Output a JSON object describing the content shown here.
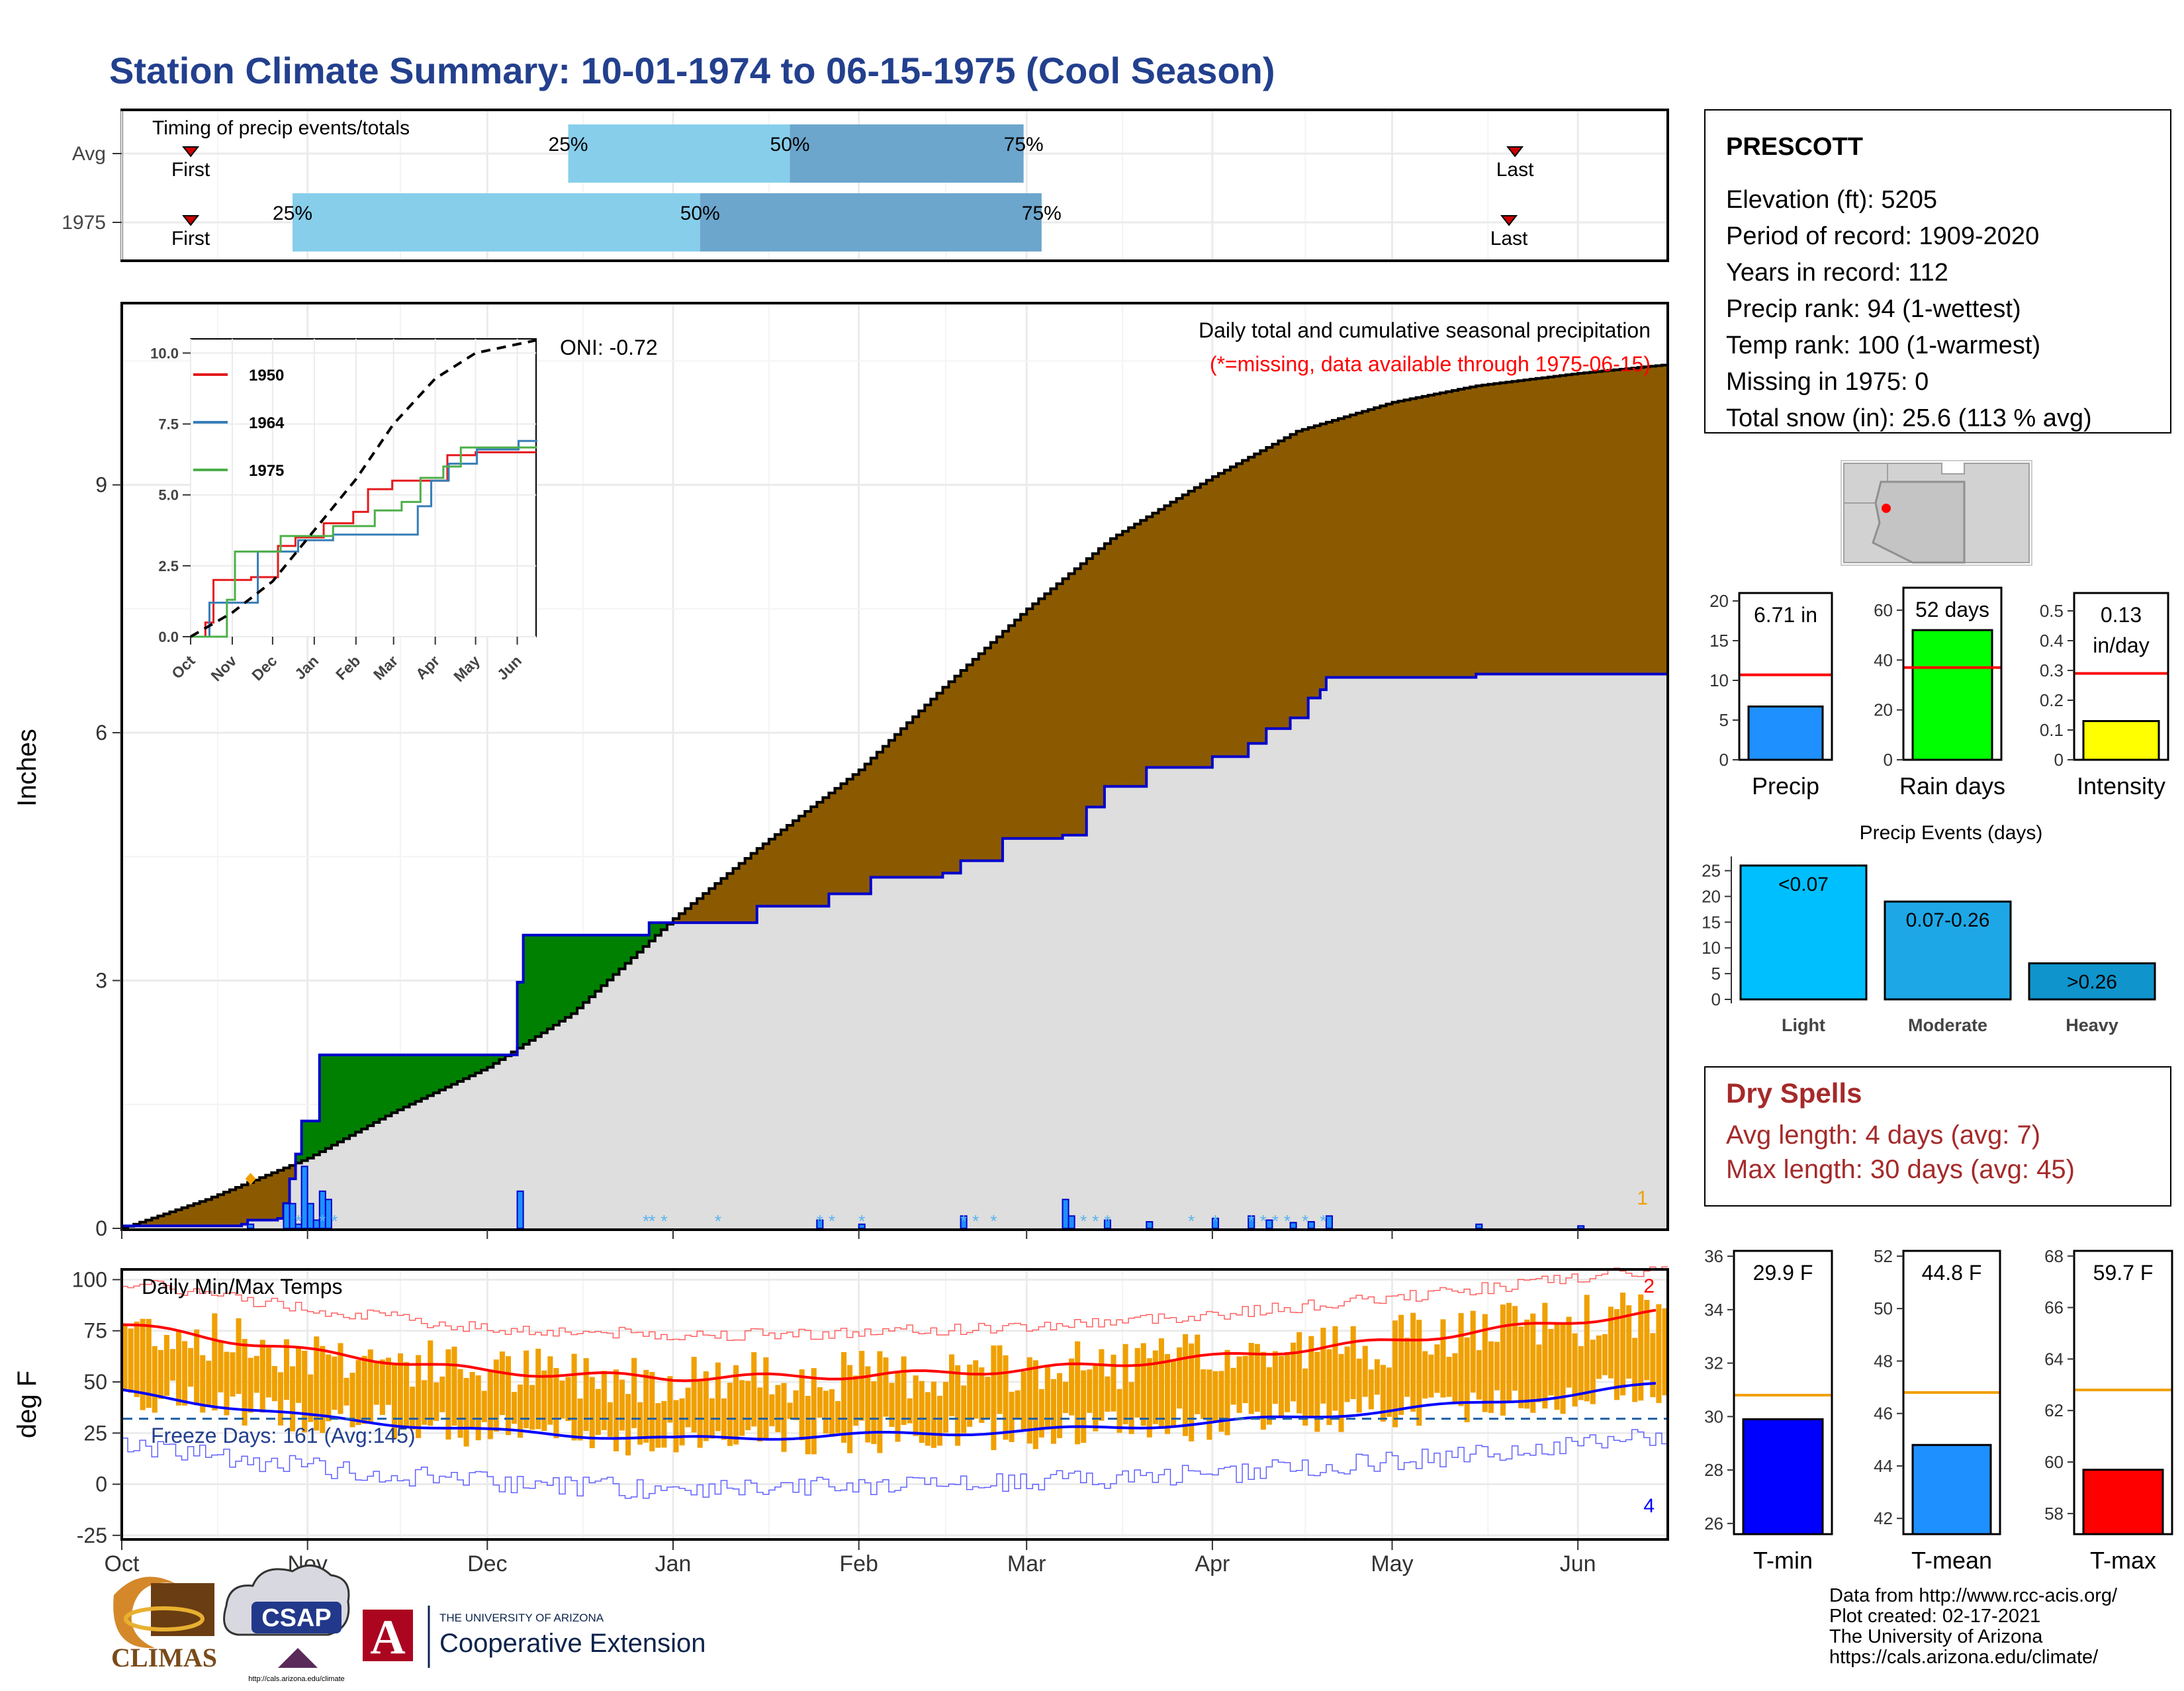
{
  "page": {
    "title": "Station Climate Summary: 10-01-1974 to 06-15-1975 (Cool Season)",
    "credits": [
      "Data from http://www.rcc-acis.org/",
      "Plot created: 02-17-2021",
      "The University of Arizona",
      "https://cals.arizona.edu/climate/"
    ]
  },
  "colors": {
    "title": "#23408e",
    "brown": "#8b5a00",
    "green": "#008000",
    "gray_fill": "#dedede",
    "blue_line": "#0000cc",
    "orange": "#f0a000",
    "precip_bar": "#1e90ff",
    "rain_bar": "#00ff00",
    "intensity_bar": "#ffff00",
    "light_blue": "#87ceeb",
    "mid_blue": "#6ca6cd",
    "dry_red": "#a52a2a",
    "tmin": "#0000ff",
    "tmean": "#1e90ff",
    "tmax": "#ff0000"
  },
  "station": {
    "name": "PRESCOTT",
    "lines": [
      "Elevation (ft): 5205",
      "Period of record: 1909-2020",
      "Years in record: 112",
      "Precip rank: 94 (1-wettest)",
      "Temp rank: 100 (1-warmest)",
      "Missing in 1975: 0",
      "Total snow (in): 25.6 (113 % avg)"
    ]
  },
  "logos": {
    "climas": "CLIMAS",
    "csap": "CSAP",
    "csap_url": "http://cals.arizona.edu/climate",
    "ua_top": "THE UNIVERSITY OF ARIZONA",
    "ua_main": "Cooperative Extension",
    "ua_letter": "A"
  },
  "chart_data": [
    {
      "type": "bar",
      "id": "timing",
      "title": "Timing of precip events/totals",
      "categories": [
        "Avg",
        "1975"
      ],
      "x_axis": "date, 1974-10-01 to 1975-06-15",
      "rows": [
        {
          "label": "Avg",
          "first": "1974-10-12",
          "p25": "1974-12-14",
          "p50": "1975-01-20",
          "p75": "1975-02-28",
          "last": "1975-05-21"
        },
        {
          "label": "1975",
          "first": "1974-10-12",
          "p25": "1974-10-29",
          "p50": "1975-01-05",
          "p75": "1975-03-03",
          "last": "1975-05-20"
        }
      ],
      "marker_labels": {
        "first": "First",
        "last": "Last",
        "p25": "25%",
        "p50": "50%",
        "p75": "75%"
      }
    },
    {
      "type": "area",
      "id": "precip_main",
      "title": "Daily total and cumulative seasonal precipitation",
      "subtitle": "(*=missing, data available through 1975-06-15)",
      "annotation": "ONI: -0.72",
      "corner_label": "1",
      "ylabel": "Inches",
      "ylim": [
        0,
        11.2
      ],
      "yticks": [
        0,
        3,
        6,
        9
      ],
      "xticks": [
        "Oct",
        "Nov",
        "Dec",
        "Jan",
        "Feb",
        "Mar",
        "Apr",
        "May",
        "Jun"
      ],
      "series": [
        {
          "name": "avg_cumulative",
          "x": [
            "1974-10-01",
            "1974-10-15",
            "1974-11-01",
            "1974-11-15",
            "1974-12-01",
            "1974-12-15",
            "1975-01-01",
            "1975-01-15",
            "1975-02-01",
            "1975-02-15",
            "1975-03-01",
            "1975-03-15",
            "1975-04-01",
            "1975-04-15",
            "1975-05-01",
            "1975-05-15",
            "1975-06-01",
            "1975-06-15"
          ],
          "values": [
            0,
            0.35,
            0.85,
            1.4,
            1.95,
            2.6,
            3.75,
            4.6,
            5.55,
            6.55,
            7.5,
            8.35,
            9.1,
            9.65,
            10.0,
            10.2,
            10.35,
            10.45
          ]
        },
        {
          "name": "1975_cumulative",
          "x": [
            "1974-10-01",
            "1974-10-21",
            "1974-10-22",
            "1974-10-27",
            "1974-10-28",
            "1974-10-29",
            "1974-10-30",
            "1974-10-31",
            "1974-11-03",
            "1974-12-06",
            "1974-12-07",
            "1974-12-27",
            "1974-12-28",
            "1975-01-15",
            "1975-01-27",
            "1975-02-03",
            "1975-02-15",
            "1975-02-18",
            "1975-02-25",
            "1975-03-07",
            "1975-03-11",
            "1975-03-14",
            "1975-03-21",
            "1975-04-01",
            "1975-04-07",
            "1975-04-10",
            "1975-04-14",
            "1975-04-17",
            "1975-04-19",
            "1975-04-20",
            "1975-05-15",
            "1975-06-15"
          ],
          "values": [
            0.03,
            0.05,
            0.1,
            0.12,
            0.3,
            0.6,
            0.9,
            1.3,
            2.1,
            2.98,
            3.55,
            3.55,
            3.7,
            3.9,
            4.05,
            4.25,
            4.3,
            4.45,
            4.72,
            4.76,
            5.1,
            5.35,
            5.58,
            5.71,
            5.87,
            6.05,
            6.18,
            6.42,
            6.52,
            6.67,
            6.71,
            6.71
          ]
        },
        {
          "name": "daily_precip",
          "x": [
            "1974-10-22",
            "1974-10-28",
            "1974-10-29",
            "1974-10-30",
            "1974-10-31",
            "1974-11-01",
            "1974-11-02",
            "1974-11-03",
            "1974-11-04",
            "1974-12-06",
            "1975-01-25",
            "1975-02-01",
            "1975-02-18",
            "1975-03-07",
            "1975-03-08",
            "1975-03-14",
            "1975-03-21",
            "1975-04-01",
            "1975-04-07",
            "1975-04-10",
            "1975-04-14",
            "1975-04-17",
            "1975-04-20",
            "1975-05-15",
            "1975-06-01"
          ],
          "values": [
            0.05,
            0.3,
            0.3,
            0.05,
            0.75,
            0.3,
            0.1,
            0.45,
            0.35,
            0.45,
            0.1,
            0.05,
            0.15,
            0.35,
            0.15,
            0.1,
            0.08,
            0.12,
            0.15,
            0.1,
            0.07,
            0.08,
            0.15,
            0.05,
            0.03
          ]
        }
      ],
      "snow_days": [
        "1974-10-30",
        "1974-11-03",
        "1974-11-05",
        "1974-12-27",
        "1974-12-28",
        "1974-12-30",
        "1975-01-08",
        "1975-01-25",
        "1975-01-27",
        "1975-02-01",
        "1975-02-18",
        "1975-02-20",
        "1975-02-23",
        "1975-03-10",
        "1975-03-12",
        "1975-03-14",
        "1975-03-28",
        "1975-04-01",
        "1975-04-07",
        "1975-04-09",
        "1975-04-11",
        "1975-04-13",
        "1975-04-16",
        "1975-04-19"
      ],
      "inset": {
        "type": "line",
        "ylim": [
          0,
          10.0
        ],
        "yticks": [
          0.0,
          2.5,
          5.0,
          7.5,
          10.0
        ],
        "xticks": [
          "Oct",
          "Nov",
          "Dec",
          "Jan",
          "Feb",
          "Mar",
          "Apr",
          "May",
          "Jun"
        ],
        "series": [
          {
            "name": "1950",
            "x": [
              "1949-10-01",
              "1949-10-12",
              "1949-10-18",
              "1949-11-15",
              "1949-12-05",
              "1949-12-18",
              "1950-01-08",
              "1950-01-30",
              "1950-02-10",
              "1950-02-28",
              "1950-03-15",
              "1950-04-10",
              "1950-05-01",
              "1950-06-15"
            ],
            "values": [
              0,
              0.5,
              2.0,
              2.1,
              3.2,
              3.5,
              4.0,
              4.4,
              5.2,
              5.5,
              5.5,
              6.4,
              6.5,
              6.5
            ]
          },
          {
            "name": "1964",
            "x": [
              "1963-10-01",
              "1963-10-15",
              "1963-11-20",
              "1963-12-20",
              "1964-01-15",
              "1964-02-12",
              "1964-03-10",
              "1964-03-18",
              "1964-03-28",
              "1964-04-10",
              "1964-05-01",
              "1964-06-01",
              "1964-06-15"
            ],
            "values": [
              0,
              1.2,
              3.0,
              3.4,
              3.6,
              3.6,
              3.6,
              4.6,
              5.5,
              6.1,
              6.6,
              6.9,
              6.9
            ]
          },
          {
            "name": "1975",
            "x": [
              "1974-10-01",
              "1974-10-28",
              "1974-11-03",
              "1974-12-07",
              "1975-01-15",
              "1975-02-15",
              "1975-03-07",
              "1975-03-21",
              "1975-04-07",
              "1975-04-20",
              "1975-06-15"
            ],
            "values": [
              0,
              1.3,
              3.0,
              3.55,
              3.9,
              4.45,
              4.75,
              5.6,
              6.0,
              6.67,
              6.71
            ]
          },
          {
            "name": "avg",
            "x": [
              "1974-10-01",
              "1974-11-01",
              "1974-12-01",
              "1975-01-01",
              "1975-02-01",
              "1975-03-01",
              "1975-04-01",
              "1975-05-01",
              "1975-06-15"
            ],
            "values": [
              0,
              0.85,
              1.95,
              3.75,
              5.55,
              7.5,
              9.1,
              10.0,
              10.45
            ]
          }
        ]
      }
    },
    {
      "type": "bar",
      "id": "temps",
      "title": "Daily Min/Max Temps",
      "annotation": "Freeze Days: 161 (Avg:145)",
      "corner_top": "2",
      "corner_bottom": "4",
      "ylabel": "deg F",
      "ylim": [
        -27,
        105
      ],
      "yticks": [
        -25,
        0,
        25,
        50,
        75,
        100
      ],
      "xticks": [
        "Oct",
        "Nov",
        "Dec",
        "Jan",
        "Feb",
        "Mar",
        "Apr",
        "May",
        "Jun"
      ],
      "freeze_line": 32,
      "avg_max": {
        "x": [
          "1974-10-01",
          "1974-11-01",
          "1974-12-01",
          "1975-01-01",
          "1975-02-01",
          "1975-03-01",
          "1975-04-01",
          "1975-05-01",
          "1975-06-01",
          "1975-06-15"
        ],
        "values": [
          78,
          65,
          55,
          52,
          53,
          56,
          62,
          70,
          80,
          84
        ]
      },
      "avg_min": {
        "x": [
          "1974-10-01",
          "1974-11-01",
          "1974-12-01",
          "1975-01-01",
          "1975-02-01",
          "1975-03-01",
          "1975-04-01",
          "1975-05-01",
          "1975-06-01",
          "1975-06-15"
        ],
        "values": [
          45,
          33,
          26,
          22,
          24,
          26,
          30,
          36,
          44,
          49
        ]
      },
      "record_high_note": "thin red line ~ record highs 80-100",
      "record_low_note": "thin blue line ~ record lows -20-30"
    },
    {
      "type": "bar",
      "id": "summary_precip",
      "categories": [
        "Precip"
      ],
      "values": [
        6.71
      ],
      "avg": 10.7,
      "label": "6.71 in",
      "ylim": [
        0,
        21
      ],
      "yticks": [
        0,
        5,
        10,
        15,
        20
      ]
    },
    {
      "type": "bar",
      "id": "summary_raindays",
      "categories": [
        "Rain days"
      ],
      "values": [
        52
      ],
      "avg": 37,
      "label": "52 days",
      "ylim": [
        0,
        69
      ],
      "yticks": [
        0,
        20,
        40,
        60
      ]
    },
    {
      "type": "bar",
      "id": "summary_intensity",
      "categories": [
        "Intensity"
      ],
      "values": [
        0.13
      ],
      "avg": 0.29,
      "label": "0.13",
      "label2": "in/day",
      "ylim": [
        0,
        0.56
      ],
      "yticks": [
        0.0,
        0.1,
        0.2,
        0.3,
        0.4,
        0.5
      ]
    },
    {
      "type": "bar",
      "id": "precip_events",
      "title": "Precip Events (days)",
      "categories": [
        "Light",
        "Moderate",
        "Heavy"
      ],
      "values": [
        26,
        19,
        7
      ],
      "bar_labels": [
        "<0.07",
        "0.07-0.26",
        ">0.26"
      ],
      "ylim": [
        0,
        27
      ],
      "yticks": [
        0,
        5,
        10,
        15,
        20,
        25
      ]
    },
    {
      "type": "bar",
      "id": "summary_tmin",
      "categories": [
        "T-min"
      ],
      "values": [
        29.9
      ],
      "avg": 30.8,
      "label": "29.9 F",
      "ylim": [
        25.6,
        36.2
      ],
      "yticks": [
        26,
        28,
        30,
        32,
        34,
        36
      ]
    },
    {
      "type": "bar",
      "id": "summary_tmean",
      "categories": [
        "T-mean"
      ],
      "values": [
        44.8
      ],
      "avg": 46.8,
      "label": "44.8 F",
      "ylim": [
        41.4,
        52.2
      ],
      "yticks": [
        42,
        44,
        46,
        48,
        50,
        52
      ]
    },
    {
      "type": "bar",
      "id": "summary_tmax",
      "categories": [
        "T-max"
      ],
      "values": [
        59.7
      ],
      "avg": 62.8,
      "label": "59.7 F",
      "ylim": [
        57.2,
        68.2
      ],
      "yticks": [
        58,
        60,
        62,
        64,
        66,
        68
      ]
    }
  ],
  "dry_spells": {
    "title": "Dry Spells",
    "avg_line": "Avg length: 4 days (avg: 7)",
    "max_line": "Max length: 30 days (avg: 45)"
  }
}
